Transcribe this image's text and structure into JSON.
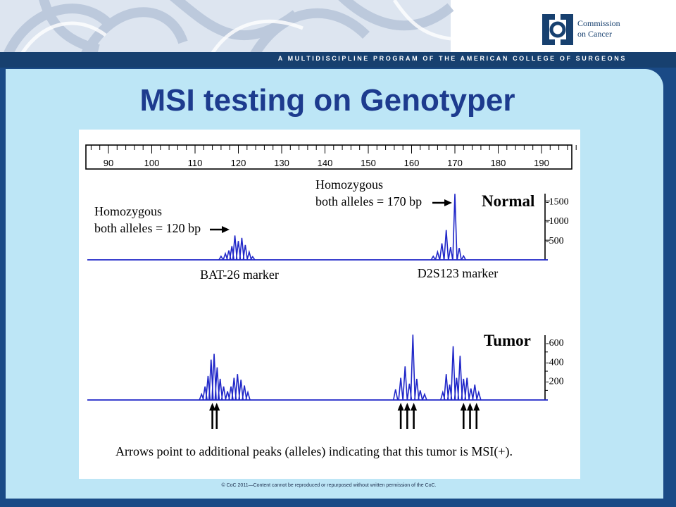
{
  "header": {
    "organization_line1": "Commission",
    "organization_line2": "on Cancer",
    "banner_text": "A MULTIDISCIPLINE PROGRAM OF THE AMERICAN COLLEGE OF SURGEONS",
    "brand_colors": {
      "navy": "#17406f",
      "panel": "#bde6f6",
      "title": "#1d3b8e"
    },
    "logo_icon": "coc-logo-icon"
  },
  "slide": {
    "title": "MSI testing on Genotyper",
    "footer": "© CoC 2011—Content cannot be reproduced or repurposed without written permission of the CoC."
  },
  "chart_data": {
    "type": "line",
    "x_axis": {
      "range": [
        85,
        198
      ],
      "ticks": [
        90,
        100,
        110,
        120,
        130,
        140,
        150,
        160,
        170,
        180,
        190
      ],
      "tick_labels": [
        "90",
        "100",
        "110",
        "120",
        "130",
        "140",
        "150",
        "160",
        "170",
        "180",
        "190"
      ],
      "unit": "bp"
    },
    "panels": [
      {
        "label": "Normal",
        "y_ticks": [
          500,
          1000,
          1500
        ],
        "y_tick_labels": [
          "-500",
          "-1000",
          "-1500"
        ],
        "y_range": [
          0,
          1650
        ],
        "peaks": [
          {
            "x": 116,
            "y": 90
          },
          {
            "x": 117,
            "y": 160
          },
          {
            "x": 117.8,
            "y": 240
          },
          {
            "x": 118.5,
            "y": 350
          },
          {
            "x": 119.2,
            "y": 620
          },
          {
            "x": 120,
            "y": 480
          },
          {
            "x": 120.8,
            "y": 560
          },
          {
            "x": 121.6,
            "y": 380
          },
          {
            "x": 122.5,
            "y": 200
          },
          {
            "x": 123.3,
            "y": 80
          },
          {
            "x": 165,
            "y": 90
          },
          {
            "x": 166,
            "y": 200
          },
          {
            "x": 167,
            "y": 420
          },
          {
            "x": 168,
            "y": 760
          },
          {
            "x": 169,
            "y": 320
          },
          {
            "x": 170,
            "y": 1680
          },
          {
            "x": 171,
            "y": 300
          },
          {
            "x": 172,
            "y": 100
          }
        ],
        "annotations": [
          {
            "text_lines": [
              "Homozygous",
              "both alleles = 120 bp"
            ],
            "points_to": 120
          },
          {
            "text_lines": [
              "Homozygous",
              "both alleles = 170 bp"
            ],
            "points_to": 170
          }
        ],
        "marker_labels": [
          {
            "text": "BAT-26 marker",
            "x": 120
          },
          {
            "text": "D2S123 marker",
            "x": 170
          }
        ]
      },
      {
        "label": "Tumor",
        "y_ticks": [
          200,
          400,
          600
        ],
        "y_tick_labels": [
          "-200",
          "-400",
          "-600"
        ],
        "y_range": [
          0,
          660
        ],
        "peaks": [
          {
            "x": 111.5,
            "y": 60
          },
          {
            "x": 112.3,
            "y": 140
          },
          {
            "x": 113,
            "y": 250
          },
          {
            "x": 113.7,
            "y": 420
          },
          {
            "x": 114.4,
            "y": 480
          },
          {
            "x": 115.1,
            "y": 340
          },
          {
            "x": 115.8,
            "y": 220
          },
          {
            "x": 116.6,
            "y": 140
          },
          {
            "x": 117.5,
            "y": 90
          },
          {
            "x": 118.3,
            "y": 140
          },
          {
            "x": 119,
            "y": 230
          },
          {
            "x": 119.8,
            "y": 270
          },
          {
            "x": 120.6,
            "y": 210
          },
          {
            "x": 121.4,
            "y": 150
          },
          {
            "x": 122.2,
            "y": 80
          },
          {
            "x": 156.3,
            "y": 110
          },
          {
            "x": 157.5,
            "y": 230
          },
          {
            "x": 158.5,
            "y": 350
          },
          {
            "x": 159.5,
            "y": 170
          },
          {
            "x": 160.3,
            "y": 680
          },
          {
            "x": 161.2,
            "y": 220
          },
          {
            "x": 162,
            "y": 100
          },
          {
            "x": 163,
            "y": 60
          },
          {
            "x": 167.2,
            "y": 80
          },
          {
            "x": 168,
            "y": 270
          },
          {
            "x": 168.8,
            "y": 160
          },
          {
            "x": 169.6,
            "y": 560
          },
          {
            "x": 170.4,
            "y": 230
          },
          {
            "x": 171.2,
            "y": 460
          },
          {
            "x": 172,
            "y": 220
          },
          {
            "x": 172.8,
            "y": 230
          },
          {
            "x": 173.7,
            "y": 120
          },
          {
            "x": 174.6,
            "y": 160
          },
          {
            "x": 175.5,
            "y": 80
          }
        ],
        "arrows_at": [
          114,
          115,
          157.5,
          159,
          160.5,
          172,
          173.5,
          175
        ],
        "caption": "Arrows point to additional peaks (alleles) indicating that this tumor is MSI(+)."
      }
    ],
    "line_color": "#1f26c8",
    "grid": false
  }
}
